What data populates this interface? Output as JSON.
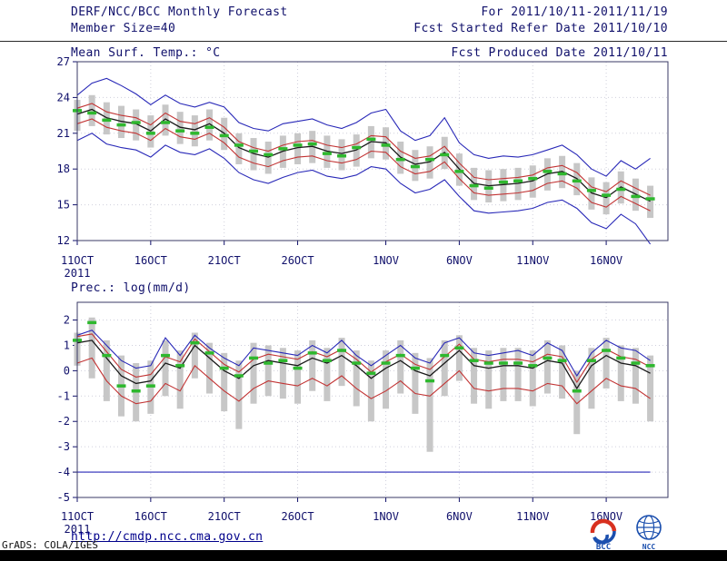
{
  "header": {
    "title": "DERF/NCC/BCC Monthly Forecast",
    "member_size": "Member Size=40",
    "forecast_range": "For 2011/10/11-2011/11/19",
    "refer_date": "Fcst Started Refer Date 2011/10/10",
    "produced_date": "Fcst Produced Date 2011/10/11"
  },
  "footer": {
    "url": "http://cmdp.ncc.cma.gov.cn",
    "credit": "GrADS: COLA/IGES",
    "logo_bcc": "BCC",
    "logo_ncc": "NCC"
  },
  "chart_data": [
    {
      "type": "line",
      "title": "Mean Surf. Temp.: °C",
      "xlabel": "",
      "ylabel": "",
      "ylim": [
        12,
        27
      ],
      "yticks": [
        12,
        15,
        18,
        21,
        24,
        27
      ],
      "grid": "dotted",
      "legend": "none",
      "year": "2011",
      "n_days": 40,
      "start_date": "2011/10/11",
      "end_date": "2011/11/19",
      "xticks": [
        {
          "label": "11OCT",
          "day": 0
        },
        {
          "label": "16OCT",
          "day": 5
        },
        {
          "label": "21OCT",
          "day": 10
        },
        {
          "label": "26OCT",
          "day": 15
        },
        {
          "label": "1NOV",
          "day": 21
        },
        {
          "label": "6NOV",
          "day": 26
        },
        {
          "label": "11NOV",
          "day": 31
        },
        {
          "label": "16NOV",
          "day": 36
        }
      ],
      "series": [
        {
          "name": "ensemble-spread",
          "style": "bar",
          "color": "#c7c7c7",
          "high": [
            23.8,
            24.2,
            23.6,
            23.3,
            23.0,
            22.5,
            23.4,
            22.8,
            22.5,
            23.0,
            22.3,
            21.0,
            20.6,
            20.3,
            20.8,
            21.0,
            21.2,
            20.8,
            20.5,
            20.9,
            21.6,
            21.5,
            20.3,
            19.6,
            19.9,
            20.7,
            19.3,
            18.1,
            17.9,
            18.0,
            18.1,
            18.3,
            18.9,
            19.1,
            18.5,
            17.3,
            16.9,
            17.8,
            17.2,
            16.6
          ],
          "low": [
            21.2,
            21.6,
            20.9,
            20.6,
            20.4,
            19.8,
            20.8,
            20.1,
            19.9,
            20.4,
            19.6,
            18.4,
            17.9,
            17.6,
            18.1,
            18.4,
            18.5,
            18.1,
            17.9,
            18.2,
            18.9,
            18.8,
            17.6,
            17.0,
            17.2,
            18.0,
            16.6,
            15.4,
            15.2,
            15.3,
            15.4,
            15.6,
            16.2,
            16.4,
            15.8,
            14.6,
            14.2,
            15.1,
            14.5,
            13.9
          ]
        },
        {
          "name": "envelope-max",
          "style": "line",
          "color": "#2929b8",
          "values": [
            24.2,
            25.2,
            25.6,
            25.0,
            24.3,
            23.4,
            24.2,
            23.5,
            23.2,
            23.6,
            23.2,
            21.9,
            21.4,
            21.2,
            21.8,
            22.0,
            22.2,
            21.7,
            21.4,
            21.9,
            22.7,
            23.0,
            21.2,
            20.4,
            20.8,
            22.3,
            20.2,
            19.2,
            18.9,
            19.1,
            19.0,
            19.2,
            19.6,
            20.0,
            19.2,
            18.0,
            17.4,
            18.7,
            18.0,
            18.9
          ]
        },
        {
          "name": "envelope-min",
          "style": "line",
          "color": "#2929b8",
          "values": [
            20.4,
            21.0,
            20.1,
            19.8,
            19.6,
            19.0,
            20.0,
            19.4,
            19.2,
            19.7,
            18.9,
            17.7,
            17.1,
            16.8,
            17.3,
            17.7,
            17.9,
            17.4,
            17.2,
            17.5,
            18.2,
            18.0,
            16.8,
            16.0,
            16.3,
            17.1,
            15.7,
            14.5,
            14.3,
            14.4,
            14.5,
            14.7,
            15.2,
            15.4,
            14.7,
            13.5,
            13.0,
            14.2,
            13.4,
            11.7
          ]
        },
        {
          "name": "quartile-upper",
          "style": "line",
          "color": "#c23434",
          "values": [
            23.1,
            23.5,
            22.8,
            22.5,
            22.3,
            21.7,
            22.7,
            22.0,
            21.8,
            22.3,
            21.5,
            20.3,
            19.8,
            19.5,
            20.0,
            20.3,
            20.4,
            20.0,
            19.8,
            20.1,
            20.8,
            20.7,
            19.5,
            18.9,
            19.1,
            19.9,
            18.5,
            17.3,
            17.1,
            17.2,
            17.3,
            17.5,
            18.1,
            18.3,
            17.7,
            16.5,
            16.1,
            17.0,
            16.4,
            15.8
          ]
        },
        {
          "name": "quartile-lower",
          "style": "line",
          "color": "#c23434",
          "values": [
            21.8,
            22.2,
            21.5,
            21.2,
            21.0,
            20.4,
            21.4,
            20.7,
            20.5,
            21.0,
            20.2,
            19.0,
            18.5,
            18.2,
            18.7,
            19.0,
            19.1,
            18.7,
            18.5,
            18.8,
            19.5,
            19.4,
            18.2,
            17.6,
            17.8,
            18.6,
            17.2,
            16.0,
            15.8,
            15.9,
            16.0,
            16.2,
            16.8,
            17.0,
            16.4,
            15.2,
            14.8,
            15.7,
            15.1,
            14.5
          ]
        },
        {
          "name": "ensemble-mean",
          "style": "line",
          "color": "#1a1a1a",
          "width": 1.3,
          "values": [
            22.6,
            23.0,
            22.3,
            22.0,
            21.8,
            21.2,
            22.2,
            21.5,
            21.3,
            21.8,
            21.0,
            19.8,
            19.3,
            19.0,
            19.5,
            19.8,
            19.9,
            19.5,
            19.3,
            19.6,
            20.3,
            20.2,
            19.0,
            18.4,
            18.6,
            19.4,
            18.0,
            16.8,
            16.6,
            16.7,
            16.8,
            17.0,
            17.6,
            17.8,
            17.2,
            16.0,
            15.6,
            16.5,
            15.9,
            15.3
          ]
        },
        {
          "name": "highlight-median-dash",
          "style": "dash",
          "color": "#2eb82e",
          "values": [
            22.9,
            22.7,
            22.1,
            21.7,
            21.9,
            21.0,
            21.9,
            21.2,
            21.0,
            21.5,
            20.8,
            20.0,
            19.5,
            19.2,
            19.7,
            20.0,
            20.1,
            19.3,
            19.1,
            19.8,
            20.5,
            20.0,
            18.8,
            18.2,
            18.8,
            19.2,
            17.8,
            16.6,
            16.4,
            16.9,
            17.0,
            17.2,
            17.8,
            17.6,
            17.0,
            16.2,
            15.8,
            16.3,
            15.7,
            15.5
          ]
        }
      ]
    },
    {
      "type": "line",
      "title": "Prec.: log(mm/d)",
      "xlabel": "",
      "ylabel": "",
      "ylim": [
        -5,
        2.7
      ],
      "yticks": [
        2,
        1,
        0,
        -1,
        -2,
        -3,
        -4,
        -5
      ],
      "grid": "dotted",
      "legend": "none",
      "year": "2011",
      "n_days": 40,
      "start_date": "2011/10/11",
      "end_date": "2011/11/19",
      "xticks": [
        {
          "label": "11OCT",
          "day": 0
        },
        {
          "label": "16OCT",
          "day": 5
        },
        {
          "label": "21OCT",
          "day": 10
        },
        {
          "label": "26OCT",
          "day": 15
        },
        {
          "label": "1NOV",
          "day": 21
        },
        {
          "label": "6NOV",
          "day": 26
        },
        {
          "label": "11NOV",
          "day": 31
        },
        {
          "label": "16NOV",
          "day": 36
        }
      ],
      "series": [
        {
          "name": "ensemble-spread",
          "style": "bar",
          "color": "#c7c7c7",
          "high": [
            1.5,
            2.1,
            1.2,
            0.6,
            0.3,
            0.4,
            1.2,
            0.8,
            1.5,
            1.1,
            0.7,
            0.4,
            1.1,
            1.0,
            0.9,
            0.8,
            1.2,
            0.9,
            1.3,
            0.8,
            0.4,
            0.8,
            1.2,
            0.7,
            0.5,
            1.2,
            1.4,
            0.9,
            0.8,
            0.9,
            0.9,
            0.8,
            1.2,
            1.0,
            0.0,
            0.9,
            1.3,
            1.0,
            0.9,
            0.6
          ],
          "low": [
            0.2,
            -0.3,
            -1.2,
            -1.8,
            -2.0,
            -1.7,
            -1.0,
            -1.5,
            -0.3,
            -0.9,
            -1.6,
            -2.3,
            -1.3,
            -1.0,
            -1.1,
            -1.3,
            -0.8,
            -1.2,
            -0.6,
            -1.4,
            -2.0,
            -1.5,
            -0.9,
            -1.7,
            -3.2,
            -1.0,
            -0.4,
            -1.3,
            -1.5,
            -1.2,
            -1.2,
            -1.4,
            -0.9,
            -1.1,
            -2.5,
            -1.5,
            -0.7,
            -1.2,
            -1.3,
            -2.0
          ]
        },
        {
          "name": "envelope-max",
          "style": "line",
          "color": "#2929b8",
          "values": [
            1.4,
            1.6,
            1.0,
            0.4,
            0.1,
            0.2,
            1.3,
            0.6,
            1.4,
            0.9,
            0.5,
            0.2,
            0.9,
            0.8,
            0.7,
            0.6,
            1.0,
            0.7,
            1.2,
            0.6,
            0.2,
            0.6,
            1.0,
            0.5,
            0.3,
            1.1,
            1.3,
            0.7,
            0.6,
            0.7,
            0.8,
            0.6,
            1.1,
            0.8,
            -0.2,
            0.7,
            1.2,
            0.9,
            0.8,
            0.4
          ]
        },
        {
          "name": "envelope-min-clipped",
          "style": "line",
          "color": "#2929b8",
          "values": [
            -4,
            -4,
            -4,
            -4,
            -4,
            -4,
            -4,
            -4,
            -4,
            -4,
            -4,
            -4,
            -4,
            -4,
            -4,
            -4,
            -4,
            -4,
            -4,
            -4,
            -4,
            -4,
            -4,
            -4,
            -4,
            -4,
            -4,
            -4,
            -4,
            -4,
            -4,
            -4,
            -4,
            -4,
            -4,
            -4,
            -4,
            -4,
            -4,
            -4
          ]
        },
        {
          "name": "quartile-upper",
          "style": "line",
          "color": "#c23434",
          "values": [
            1.35,
            1.45,
            0.75,
            0.05,
            -0.25,
            -0.15,
            0.55,
            0.35,
            1.25,
            0.75,
            0.25,
            -0.05,
            0.45,
            0.65,
            0.55,
            0.45,
            0.75,
            0.55,
            0.85,
            0.45,
            -0.05,
            0.35,
            0.65,
            0.25,
            0.05,
            0.55,
            1.05,
            0.45,
            0.35,
            0.45,
            0.45,
            0.35,
            0.65,
            0.55,
            -0.45,
            0.45,
            0.85,
            0.55,
            0.45,
            0.15
          ]
        },
        {
          "name": "quartile-lower",
          "style": "line",
          "color": "#c23434",
          "values": [
            0.3,
            0.5,
            -0.4,
            -1.0,
            -1.3,
            -1.2,
            -0.5,
            -0.8,
            0.2,
            -0.3,
            -0.8,
            -1.2,
            -0.7,
            -0.4,
            -0.5,
            -0.6,
            -0.3,
            -0.6,
            -0.2,
            -0.7,
            -1.1,
            -0.8,
            -0.4,
            -0.9,
            -1.0,
            -0.5,
            0.0,
            -0.7,
            -0.8,
            -0.7,
            -0.7,
            -0.8,
            -0.5,
            -0.6,
            -1.3,
            -0.8,
            -0.3,
            -0.6,
            -0.7,
            -1.1
          ]
        },
        {
          "name": "ensemble-mean",
          "style": "line",
          "color": "#1a1a1a",
          "width": 1.3,
          "values": [
            1.1,
            1.2,
            0.5,
            -0.2,
            -0.5,
            -0.4,
            0.3,
            0.1,
            1.0,
            0.5,
            0.0,
            -0.3,
            0.2,
            0.4,
            0.3,
            0.2,
            0.5,
            0.3,
            0.6,
            0.2,
            -0.3,
            0.1,
            0.4,
            0.0,
            -0.2,
            0.3,
            0.8,
            0.2,
            0.1,
            0.2,
            0.2,
            0.1,
            0.4,
            0.3,
            -0.7,
            0.2,
            0.6,
            0.3,
            0.2,
            -0.1
          ]
        },
        {
          "name": "highlight-median-dash",
          "style": "dash",
          "color": "#2eb82e",
          "values": [
            1.2,
            1.9,
            0.6,
            -0.6,
            -0.8,
            -0.6,
            0.6,
            0.2,
            1.1,
            0.7,
            0.1,
            -0.2,
            0.5,
            0.3,
            0.4,
            0.1,
            0.7,
            0.4,
            0.8,
            0.3,
            -0.1,
            0.3,
            0.6,
            0.1,
            -0.4,
            0.6,
            0.9,
            0.4,
            0.3,
            0.3,
            0.3,
            0.2,
            0.5,
            0.4,
            -0.8,
            0.4,
            0.8,
            0.5,
            0.3,
            0.2
          ]
        }
      ]
    }
  ]
}
